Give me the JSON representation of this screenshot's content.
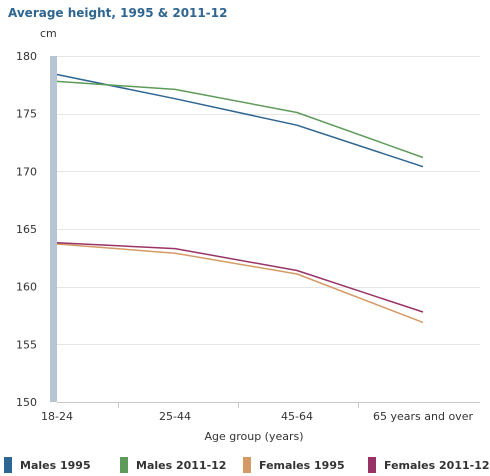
{
  "chart_data": {
    "type": "line",
    "title": "Average height, 1995 & 2011-12",
    "ylabel": "cm",
    "xlabel": "Age group (years)",
    "categories": [
      "18-24",
      "25-44",
      "45-64",
      "65 years and over"
    ],
    "ylim": [
      150,
      180
    ],
    "yticks": [
      150,
      155,
      160,
      165,
      170,
      175,
      180
    ],
    "grid": true,
    "legend": "bottom",
    "series": [
      {
        "name": "Males 1995",
        "color": "#2e6591",
        "values": [
          178.4,
          176.3,
          174.0,
          170.4
        ]
      },
      {
        "name": "Males 2011-12",
        "color": "#5e9b5a",
        "values": [
          177.8,
          177.1,
          175.1,
          171.2
        ]
      },
      {
        "name": "Females 1995",
        "color": "#d49a66",
        "values": [
          163.7,
          162.9,
          161.1,
          156.9
        ]
      },
      {
        "name": "Females 2011-12",
        "color": "#993366",
        "values": [
          163.8,
          163.3,
          161.4,
          157.8
        ]
      }
    ]
  }
}
